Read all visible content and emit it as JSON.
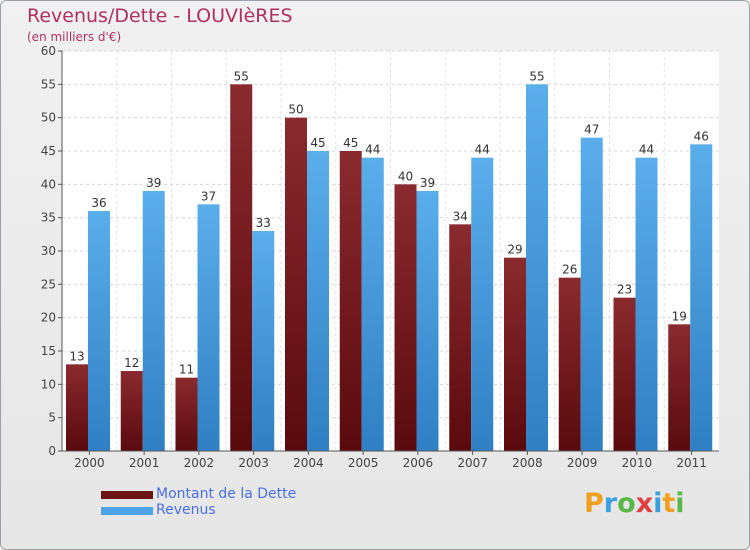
{
  "title": "Revenus/Dette - LOUVIèRES",
  "subtitle": "(en milliers d'€)",
  "colors": {
    "dette": "#7a1e22",
    "revenus": "#4ea3e6",
    "title": "#b03060",
    "legend_text": "#4a6fe0"
  },
  "legend": {
    "items": [
      {
        "label": "Montant de la Dette",
        "color": "#6b1315"
      },
      {
        "label": "Revenus",
        "color": "#4ea3e6"
      }
    ]
  },
  "logo": {
    "letters": [
      "P",
      "r",
      "o",
      "x",
      "i",
      "t",
      "i"
    ],
    "colors": [
      "#f0a020",
      "#3aa0e0",
      "#58b848",
      "#e04040",
      "#3aa0e0",
      "#f0a020",
      "#58b848"
    ]
  },
  "chart_data": {
    "type": "bar",
    "categories": [
      "2000",
      "2001",
      "2002",
      "2003",
      "2004",
      "2005",
      "2006",
      "2007",
      "2008",
      "2009",
      "2010",
      "2011"
    ],
    "series": [
      {
        "name": "Montant de la Dette",
        "values": [
          13,
          12,
          11,
          55,
          50,
          45,
          40,
          34,
          29,
          26,
          23,
          19
        ]
      },
      {
        "name": "Revenus",
        "values": [
          36,
          39,
          37,
          33,
          45,
          44,
          39,
          44,
          55,
          47,
          44,
          46
        ]
      }
    ],
    "yticks": [
      0,
      5,
      10,
      15,
      20,
      25,
      30,
      35,
      40,
      45,
      50,
      55,
      60
    ],
    "ylim": [
      0,
      60
    ],
    "grid": true,
    "legend_position": "bottom-left"
  }
}
